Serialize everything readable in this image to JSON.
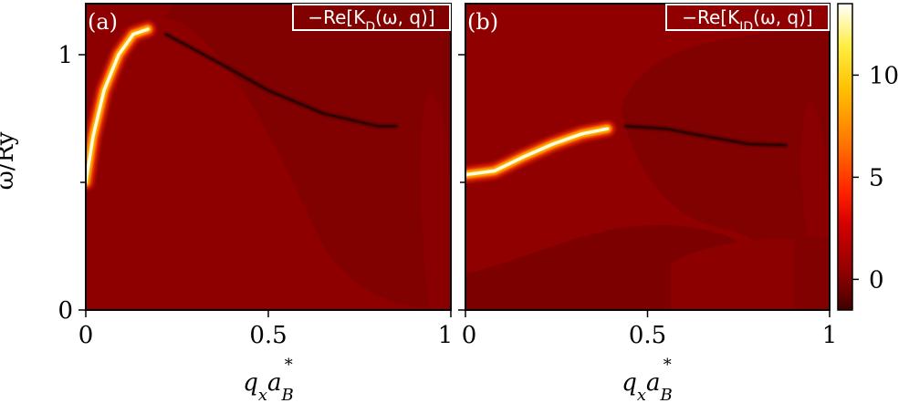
{
  "chart_data": [
    {
      "type": "heatmap",
      "panel_label": "(a)",
      "title": "−Re[K_D(ω, q)]",
      "xlabel": "q_x a_B^*",
      "ylabel": "ω/Ry^*",
      "x_tick_labels": [
        "0",
        "0.5",
        "1"
      ],
      "y_tick_labels": [
        "0",
        "1"
      ],
      "xlim": [
        0,
        1
      ],
      "ylim": [
        0,
        1.2
      ],
      "colormap": "hot",
      "background_value": 0,
      "features": [
        {
          "kind": "bright_ridge",
          "points": [
            [
              0.0,
              0.5
            ],
            [
              0.02,
              0.68
            ],
            [
              0.05,
              0.86
            ],
            [
              0.09,
              1.0
            ],
            [
              0.13,
              1.08
            ],
            [
              0.17,
              1.1
            ]
          ],
          "value": 13
        },
        {
          "kind": "dark_line",
          "points": [
            [
              0.22,
              1.08
            ],
            [
              0.35,
              0.98
            ],
            [
              0.5,
              0.86
            ],
            [
              0.65,
              0.77
            ],
            [
              0.8,
              0.72
            ],
            [
              0.85,
              0.72
            ]
          ],
          "value": -1.5
        }
      ]
    },
    {
      "type": "heatmap",
      "panel_label": "(b)",
      "title": "−Re[K_ID(ω, q)]",
      "xlabel": "q_x a_B^*",
      "x_tick_labels": [
        "0",
        "0.5",
        "1"
      ],
      "xlim": [
        0,
        1
      ],
      "ylim": [
        0,
        1.2
      ],
      "colormap": "hot",
      "background_value": 0,
      "features": [
        {
          "kind": "bright_ridge",
          "points": [
            [
              0.0,
              0.53
            ],
            [
              0.08,
              0.545
            ],
            [
              0.16,
              0.6
            ],
            [
              0.24,
              0.65
            ],
            [
              0.32,
              0.69
            ],
            [
              0.39,
              0.71
            ]
          ],
          "value": 13
        },
        {
          "kind": "dark_line",
          "points": [
            [
              0.44,
              0.72
            ],
            [
              0.55,
              0.71
            ],
            [
              0.66,
              0.68
            ],
            [
              0.78,
              0.65
            ],
            [
              0.88,
              0.645
            ]
          ],
          "value": -1.5
        }
      ]
    }
  ],
  "colorbar": {
    "tick_labels": [
      "10",
      "5",
      "0"
    ],
    "range": [
      -1.5,
      13.5
    ]
  }
}
